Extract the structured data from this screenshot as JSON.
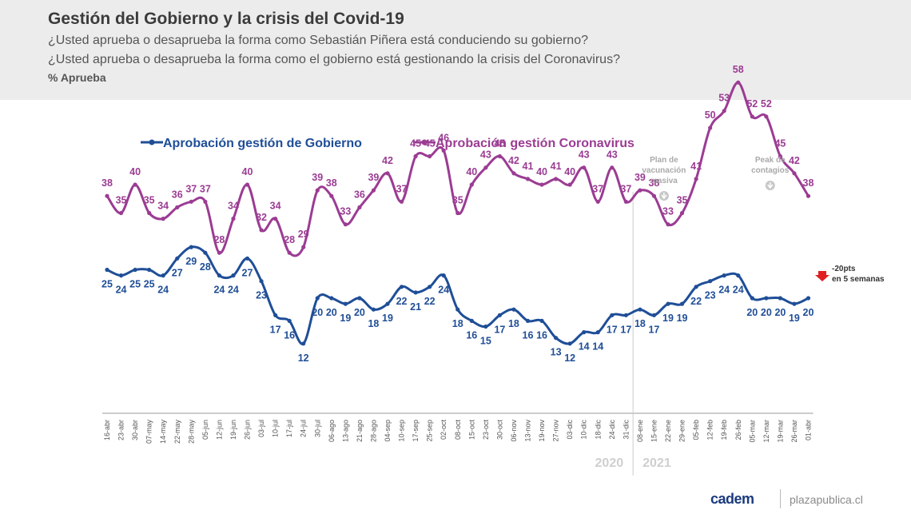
{
  "header": {
    "title": "Gestión del Gobierno y la crisis del Covid-19",
    "question_1": "¿Usted aprueba o desaprueba la forma como Sebastián Piñera está conduciendo su gobierno?",
    "question_2": "¿Usted aprueba o desaprueba la forma como el gobierno está gestionando la crisis del Coronavirus?",
    "unit": "% Aprueba"
  },
  "colors": {
    "gobierno": "#1f4e97",
    "coronavirus": "#9b3c93",
    "annotation": "#aaaaaa",
    "arrow": "#e02020"
  },
  "chart_data": {
    "type": "line",
    "x": [
      "16-abr",
      "23-abr",
      "30-abr",
      "07-may",
      "14-may",
      "22-may",
      "28-may",
      "05-jun",
      "12-jun",
      "19-jun",
      "26-jun",
      "03-jul",
      "10-jul",
      "17-jul",
      "24-jul",
      "30-jul",
      "06-ago",
      "13-ago",
      "21-ago",
      "28-ago",
      "04-sep",
      "10-sep",
      "17-sep",
      "25-sep",
      "02-oct",
      "08-oct",
      "15-oct",
      "23-oct",
      "30-oct",
      "06-nov",
      "13-nov",
      "19-nov",
      "27-nov",
      "03-dic",
      "10-dic",
      "18-dic",
      "24-dic",
      "31-dic",
      "08-ene",
      "15-ene",
      "22-ene",
      "29-ene",
      "05-feb",
      "12-feb",
      "19-feb",
      "26-feb",
      "05-mar",
      "12-mar",
      "19-mar",
      "26-mar",
      "01-abr"
    ],
    "series": [
      {
        "name": "Aprobación gestión de Gobierno",
        "values": [
          25,
          24,
          25,
          25,
          24,
          27,
          29,
          28,
          24,
          24,
          27,
          23,
          17,
          16,
          12,
          20,
          20,
          19,
          20,
          18,
          19,
          22,
          21,
          22,
          24,
          18,
          16,
          15,
          17,
          18,
          16,
          16,
          13,
          12,
          14,
          14,
          17,
          17,
          18,
          17,
          19,
          19,
          22,
          23,
          24,
          24,
          20,
          20,
          20,
          19,
          20
        ]
      },
      {
        "name": "Aprobación gestión Coronavirus",
        "values": [
          38,
          35,
          40,
          35,
          34,
          36,
          37,
          37,
          28,
          34,
          40,
          32,
          34,
          28,
          29,
          39,
          38,
          33,
          36,
          39,
          42,
          37,
          45,
          45,
          46,
          35,
          40,
          43,
          45,
          42,
          41,
          40,
          41,
          40,
          43,
          37,
          43,
          37,
          39,
          38,
          33,
          35,
          41,
          50,
          53,
          58,
          52,
          52,
          45,
          42,
          38
        ]
      }
    ],
    "year_labels": [
      "2020",
      "2021"
    ],
    "annotations": [
      {
        "text": [
          "Plan de",
          "vacunación",
          "masiva"
        ],
        "at": "08-ene"
      },
      {
        "text": [
          "Peak de",
          "contagios"
        ],
        "at": "26-feb"
      }
    ],
    "callout": [
      "-20pts",
      "en 5 semanas"
    ]
  },
  "footer": {
    "brand": "cadem",
    "site": "plazapublica.cl"
  }
}
